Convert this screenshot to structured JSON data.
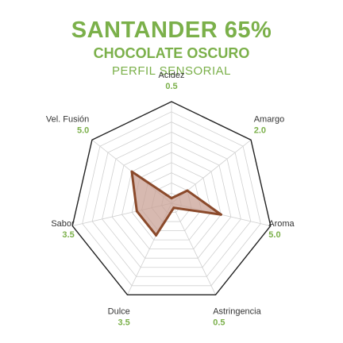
{
  "header": {
    "title": "SANTANDER 65%",
    "subtitle": "CHOCOLATE OSCURO",
    "caption": "PERFIL SENSORIAL"
  },
  "colors": {
    "accent": "#7bb04a",
    "label": "#333333",
    "grid": "#d0d0d0",
    "outline": "#222222",
    "series_stroke": "#8b4a2b",
    "series_fill": "#c9a196"
  },
  "chart_data": {
    "type": "radar",
    "title": "",
    "axes": [
      "Acidez",
      "Amargo",
      "Aroma",
      "Astringencia",
      "Dulce",
      "Sabor",
      "Vel. Fusión"
    ],
    "value_labels": [
      "0.5",
      "2.0",
      "5.0",
      "0.5",
      "3.5",
      "3.5",
      "5.0"
    ],
    "series": [
      {
        "values": [
          0.5,
          2.0,
          5.0,
          0.5,
          3.5,
          3.5,
          5.0
        ]
      }
    ],
    "range": [
      0,
      10
    ],
    "grid_levels": 10,
    "grid": true,
    "legend": "none"
  }
}
